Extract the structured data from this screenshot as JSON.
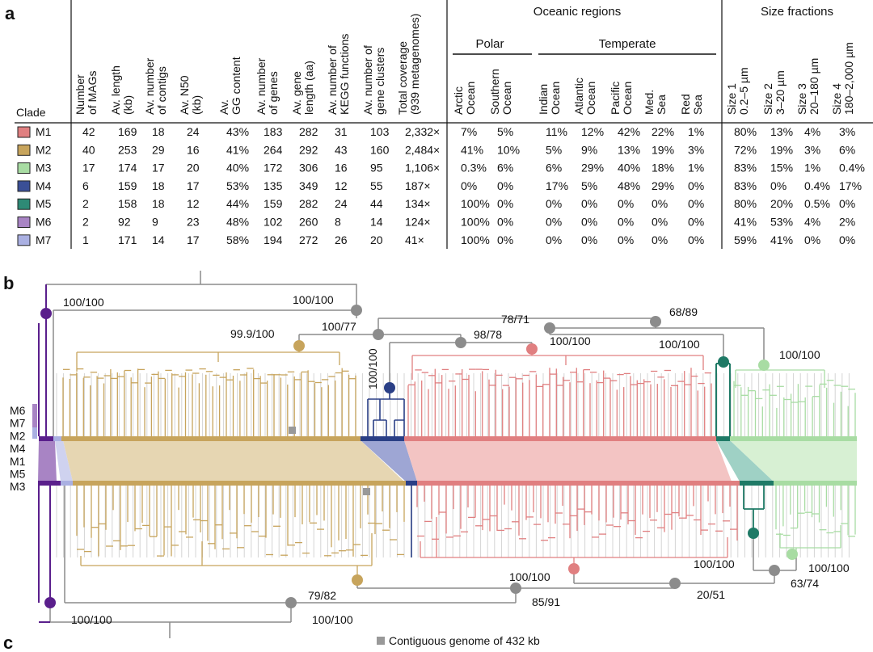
{
  "panels": {
    "a": "a",
    "b": "b",
    "c": "c"
  },
  "table": {
    "clade_header": "Clade",
    "group_headers": {
      "oceanic": "Oceanic regions",
      "size": "Size fractions",
      "polar": "Polar",
      "temperate": "Temperate"
    },
    "column_headers": [
      [
        "Number",
        "of MAGs"
      ],
      [
        "Av. length",
        "(kb)"
      ],
      [
        "Av. number",
        "of contigs"
      ],
      [
        "Av. N50",
        "(kb)"
      ],
      [
        "Av.",
        "GG content"
      ],
      [
        "Av. number",
        "of genes"
      ],
      [
        "Av. gene",
        "length (aa)"
      ],
      [
        "Av. number of",
        "KEGG functions"
      ],
      [
        "Av. number of",
        "gene clusters"
      ],
      [
        "Total coverage",
        "(939 metagenomes)"
      ],
      [
        "Arctic",
        "Ocean"
      ],
      [
        "Southern",
        "Ocean"
      ],
      [
        "Indian",
        "Ocean"
      ],
      [
        "Atlantic",
        "Ocean"
      ],
      [
        "Pacific",
        "Ocean"
      ],
      [
        "Med.",
        "Sea"
      ],
      [
        "Red",
        "Sea"
      ],
      [
        "Size 1",
        "0.2–5 µm"
      ],
      [
        "Size 2",
        "3–20 µm"
      ],
      [
        "Size 3",
        "20–180 µm"
      ],
      [
        "Size 4",
        "180–2,000 µm"
      ]
    ],
    "rows": [
      {
        "clade": "M1",
        "color": "#e07f80",
        "cells": [
          "42",
          "169",
          "18",
          "24",
          "43%",
          "183",
          "282",
          "31",
          "103",
          "2,332×",
          "7%",
          "5%",
          "11%",
          "12%",
          "42%",
          "22%",
          "1%",
          "80%",
          "13%",
          "4%",
          "3%"
        ]
      },
      {
        "clade": "M2",
        "color": "#c7a45c",
        "cells": [
          "40",
          "253",
          "29",
          "16",
          "41%",
          "264",
          "292",
          "43",
          "160",
          "2,484×",
          "41%",
          "10%",
          "5%",
          "9%",
          "13%",
          "19%",
          "3%",
          "72%",
          "19%",
          "3%",
          "6%"
        ]
      },
      {
        "clade": "M3",
        "color": "#a8dca3",
        "cells": [
          "17",
          "174",
          "17",
          "20",
          "40%",
          "172",
          "306",
          "16",
          "95",
          "1,106×",
          "0.3%",
          "6%",
          "6%",
          "29%",
          "40%",
          "18%",
          "1%",
          "83%",
          "15%",
          "1%",
          "0.4%"
        ]
      },
      {
        "clade": "M4",
        "color": "#3a4f96",
        "cells": [
          "6",
          "159",
          "18",
          "17",
          "53%",
          "135",
          "349",
          "12",
          "55",
          "187×",
          "0%",
          "0%",
          "17%",
          "5%",
          "48%",
          "29%",
          "0%",
          "83%",
          "0%",
          "0.4%",
          "17%"
        ]
      },
      {
        "clade": "M5",
        "color": "#2e8a76",
        "cells": [
          "2",
          "158",
          "18",
          "12",
          "44%",
          "159",
          "282",
          "24",
          "44",
          "134×",
          "100%",
          "0%",
          "0%",
          "0%",
          "0%",
          "0%",
          "0%",
          "80%",
          "20%",
          "0.5%",
          "0%"
        ]
      },
      {
        "clade": "M6",
        "color": "#a884c4",
        "cells": [
          "2",
          "92",
          "9",
          "23",
          "48%",
          "102",
          "260",
          "8",
          "14",
          "124×",
          "100%",
          "0%",
          "0%",
          "0%",
          "0%",
          "0%",
          "0%",
          "41%",
          "53%",
          "4%",
          "2%"
        ]
      },
      {
        "clade": "M7",
        "color": "#aab0e2",
        "cells": [
          "1",
          "171",
          "14",
          "17",
          "58%",
          "194",
          "272",
          "26",
          "20",
          "41×",
          "100%",
          "0%",
          "0%",
          "0%",
          "0%",
          "0%",
          "0%",
          "59%",
          "41%",
          "0%",
          "0%"
        ]
      }
    ]
  },
  "tree": {
    "legend": [
      {
        "name": "M6",
        "color": "#a884c4"
      },
      {
        "name": "M7",
        "color": "#aab0e2"
      },
      {
        "name": "M2",
        "color": "#c7a45c"
      },
      {
        "name": "M4",
        "color": "#3a4f96"
      },
      {
        "name": "M1",
        "color": "#e07f80"
      },
      {
        "name": "M5",
        "color": "#2e8a76"
      },
      {
        "name": "M3",
        "color": "#a8dca3"
      }
    ],
    "top_support": [
      "100/100",
      "100/100",
      "100/77",
      "99.9/100",
      "98/78",
      "100/100",
      "78/71",
      "68/89",
      "100/100",
      "100/100",
      "100/100"
    ],
    "bottom_support": [
      "100/100",
      "100/100",
      "79/82",
      "85/91",
      "100/100",
      "20/51",
      "63/74",
      "100/100",
      "100/100"
    ],
    "footnote": "Contiguous genome of 432 kb",
    "colors": {
      "node_grey": "#8c8c8c",
      "marker_grey": "#999999",
      "m6_dark": "#5a1f8c",
      "m4_dark": "#2a3f86",
      "m5_dark": "#1f7a66"
    }
  }
}
